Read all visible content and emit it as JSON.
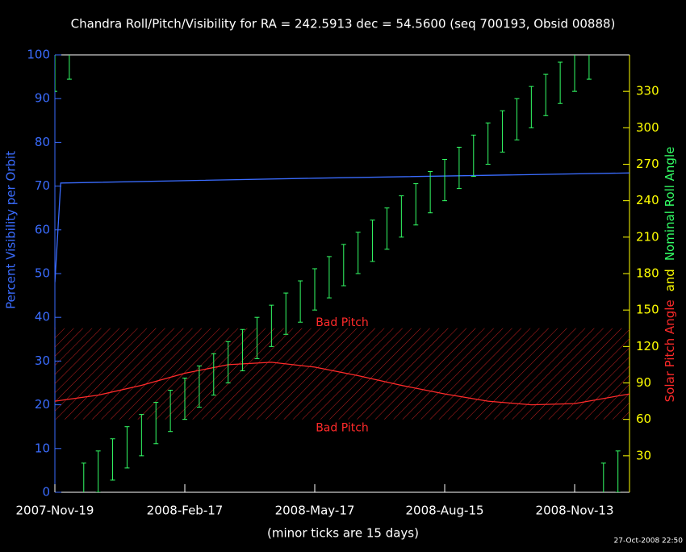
{
  "chart_data": {
    "type": "line",
    "title": "Chandra Roll/Pitch/Visibility for RA = 242.5913 dec = 54.5600 (seq 700193, Obsid 00888)",
    "ylabel": "Percent Visibility per Orbit",
    "y2label": [
      {
        "text": "Solar Pitch Angle",
        "color": "#ff2a2a"
      },
      {
        "text": "and",
        "color": "#ffff00"
      },
      {
        "text": "Nominal Roll Angle",
        "color": "#33ff66"
      }
    ],
    "xlabel": "(minor ticks are 15 days)",
    "timestamp": "27-Oct-2008 22:50",
    "xlim": [
      "2007-11-19",
      "2008-12-21"
    ],
    "xticks": [
      {
        "value": "2007-11-19",
        "label": "2007-Nov-19"
      },
      {
        "value": "2008-02-17",
        "label": "2008-Feb-17"
      },
      {
        "value": "2008-05-17",
        "label": "2008-May-17"
      },
      {
        "value": "2008-08-15",
        "label": "2008-Aug-15"
      },
      {
        "value": "2008-11-13",
        "label": "2008-Nov-13"
      }
    ],
    "ylim": [
      0,
      100
    ],
    "yticks": [
      0,
      10,
      20,
      30,
      40,
      50,
      60,
      70,
      80,
      90,
      100
    ],
    "y2lim": [
      0,
      360
    ],
    "y2ticks": [
      30,
      60,
      90,
      120,
      150,
      180,
      210,
      240,
      270,
      300,
      330
    ],
    "bad_pitch": {
      "range": [
        60,
        135
      ],
      "label": "Bad Pitch",
      "color": "#ff2a2a"
    },
    "series": [
      {
        "color": "#3a6cff",
        "x": [
          "2007-11-19",
          "2007-11-23",
          "2008-05-17",
          "2008-12-21"
        ],
        "values": [
          48,
          70.7,
          71.8,
          73
        ]
      },
      {
        "axis": "y2",
        "color": "#ff2a2a",
        "x": [
          "2007-11-19",
          "2007-12-19",
          "2008-01-18",
          "2008-02-17",
          "2008-03-18",
          "2008-04-17",
          "2008-05-17",
          "2008-06-16",
          "2008-07-16",
          "2008-08-15",
          "2008-09-14",
          "2008-10-14",
          "2008-11-13",
          "2008-12-21"
        ],
        "values": [
          75,
          80,
          88,
          98,
          105,
          107,
          103,
          96,
          88,
          81,
          75,
          72,
          73,
          81
        ]
      },
      {
        "axis": "y2",
        "color": "#33ff66",
        "style": "errorbar",
        "error": 17,
        "x": [
          "2007-11-19",
          "2007-11-29",
          "2007-12-09",
          "2007-12-19",
          "2007-12-29",
          "2008-01-08",
          "2008-01-18",
          "2008-01-28",
          "2008-02-07",
          "2008-02-17",
          "2008-02-27",
          "2008-03-08",
          "2008-03-18",
          "2008-03-28",
          "2008-04-07",
          "2008-04-17",
          "2008-04-27",
          "2008-05-07",
          "2008-05-17",
          "2008-05-27",
          "2008-06-06",
          "2008-06-16",
          "2008-06-26",
          "2008-07-06",
          "2008-07-16",
          "2008-07-26",
          "2008-08-05",
          "2008-08-15",
          "2008-08-25",
          "2008-09-04",
          "2008-09-14",
          "2008-09-24",
          "2008-10-04",
          "2008-10-14",
          "2008-10-24",
          "2008-11-03",
          "2008-11-13",
          "2008-11-23",
          "2008-12-03",
          "2008-12-13"
        ],
        "values": [
          347,
          357,
          7,
          17,
          27,
          37,
          47,
          57,
          67,
          77,
          87,
          97,
          107,
          117,
          127,
          137,
          147,
          157,
          167,
          177,
          187,
          197,
          207,
          217,
          227,
          237,
          247,
          257,
          267,
          277,
          287,
          297,
          307,
          317,
          327,
          337,
          347,
          357,
          7,
          17
        ]
      }
    ]
  }
}
